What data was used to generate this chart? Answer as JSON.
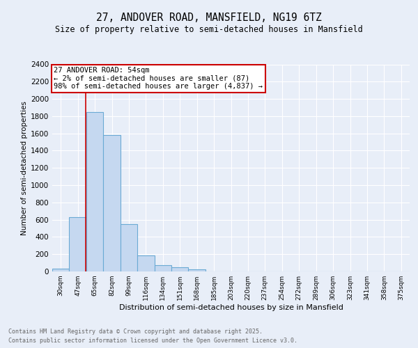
{
  "title1": "27, ANDOVER ROAD, MANSFIELD, NG19 6TZ",
  "title2": "Size of property relative to semi-detached houses in Mansfield",
  "xlabel": "Distribution of semi-detached houses by size in Mansfield",
  "ylabel": "Number of semi-detached properties",
  "categories": [
    "30sqm",
    "47sqm",
    "65sqm",
    "82sqm",
    "99sqm",
    "116sqm",
    "134sqm",
    "151sqm",
    "168sqm",
    "185sqm",
    "203sqm",
    "220sqm",
    "237sqm",
    "254sqm",
    "272sqm",
    "289sqm",
    "306sqm",
    "323sqm",
    "341sqm",
    "358sqm",
    "375sqm"
  ],
  "values": [
    35,
    630,
    1850,
    1580,
    550,
    185,
    75,
    45,
    25,
    0,
    0,
    0,
    0,
    0,
    0,
    0,
    0,
    0,
    0,
    0,
    0
  ],
  "bar_color": "#c5d8f0",
  "bar_edge_color": "#6aaad4",
  "red_line_x": 1.47,
  "annotation_title": "27 ANDOVER ROAD: 54sqm",
  "annotation_line1": "← 2% of semi-detached houses are smaller (87)",
  "annotation_line2": "98% of semi-detached houses are larger (4,837) →",
  "annotation_box_color": "#ffffff",
  "annotation_box_edge": "#cc0000",
  "red_line_color": "#cc0000",
  "ylim": [
    0,
    2400
  ],
  "yticks": [
    0,
    200,
    400,
    600,
    800,
    1000,
    1200,
    1400,
    1600,
    1800,
    2000,
    2200,
    2400
  ],
  "footer1": "Contains HM Land Registry data © Crown copyright and database right 2025.",
  "footer2": "Contains public sector information licensed under the Open Government Licence v3.0.",
  "bg_color": "#e8eef8",
  "plot_bg_color": "#e8eef8"
}
